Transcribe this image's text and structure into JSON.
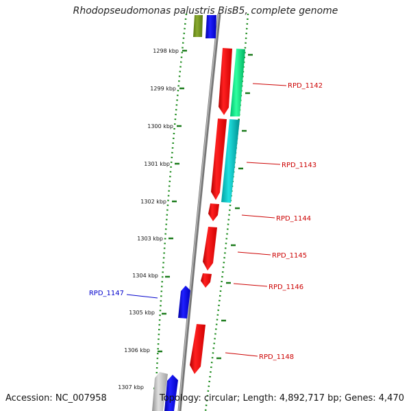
{
  "title": "Rhodopseudomonas palustris BisB5, complete genome",
  "accession": "Accession: NC_007958",
  "topology": "Topology: circular; Length: 4,892,717 bp; Genes: 4,470",
  "colors": {
    "backbone": "#808080",
    "forward_gene": "#ff0000",
    "reverse_gene": "#0000ff",
    "tick_dots": "#1a8a1a",
    "label_forward": "#cc0000",
    "label_reverse": "#0000cc"
  },
  "ticks": [
    {
      "label": "1298 kbp"
    },
    {
      "label": "1299 kbp"
    },
    {
      "label": "1300 kbp"
    },
    {
      "label": "1301 kbp"
    },
    {
      "label": "1302 kbp"
    },
    {
      "label": "1303 kbp"
    },
    {
      "label": "1304 kbp"
    },
    {
      "label": "1305 kbp"
    },
    {
      "label": "1306 kbp"
    },
    {
      "label": "1307 kbp"
    }
  ],
  "gene_labels": [
    {
      "text": "RPD_1142",
      "strand": "forward"
    },
    {
      "text": "RPD_1143",
      "strand": "forward"
    },
    {
      "text": "RPD_1144",
      "strand": "forward"
    },
    {
      "text": "RPD_1145",
      "strand": "forward"
    },
    {
      "text": "RPD_1146",
      "strand": "forward"
    },
    {
      "text": "RPD_1147",
      "strand": "reverse"
    },
    {
      "text": "RPD_1148",
      "strand": "forward"
    }
  ]
}
